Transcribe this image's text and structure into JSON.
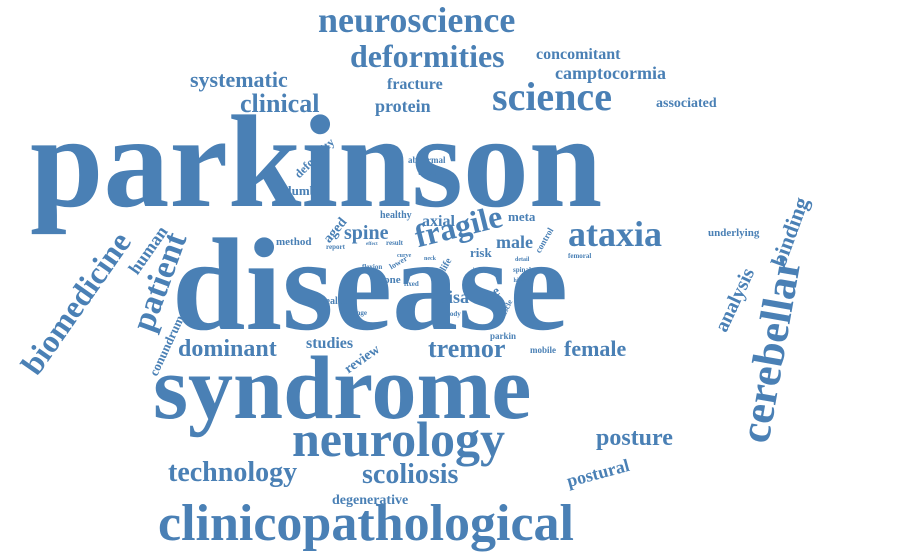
{
  "colors": {
    "word": "#4a80b5",
    "background": "#ffffff"
  },
  "words": [
    {
      "key": "parkinson",
      "text": "parkinson"
    },
    {
      "key": "disease",
      "text": "disease"
    },
    {
      "key": "syndrome",
      "text": "syndrome"
    },
    {
      "key": "neurology",
      "text": "neurology"
    },
    {
      "key": "clinicopathological",
      "text": "clinicopathological"
    },
    {
      "key": "cerebellar",
      "text": "cerebellar"
    },
    {
      "key": "neuroscience",
      "text": "neuroscience"
    },
    {
      "key": "deformities",
      "text": "deformities"
    },
    {
      "key": "science",
      "text": "science"
    },
    {
      "key": "biomedicine",
      "text": "biomedicine"
    },
    {
      "key": "patient",
      "text": "patient"
    },
    {
      "key": "ataxia",
      "text": "ataxia"
    },
    {
      "key": "fragile",
      "text": "fragile"
    },
    {
      "key": "technology",
      "text": "technology"
    },
    {
      "key": "scoliosis",
      "text": "scoliosis"
    },
    {
      "key": "posture",
      "text": "posture"
    },
    {
      "key": "systematic",
      "text": "systematic"
    },
    {
      "key": "clinical",
      "text": "clinical"
    },
    {
      "key": "camptocormia",
      "text": "camptocormia"
    },
    {
      "key": "concomitant",
      "text": "concomitant"
    },
    {
      "key": "tremor",
      "text": "tremor"
    },
    {
      "key": "dominant",
      "text": "dominant"
    },
    {
      "key": "female",
      "text": "female"
    },
    {
      "key": "analysis",
      "text": "analysis"
    },
    {
      "key": "binding",
      "text": "binding"
    },
    {
      "key": "spine",
      "text": "spine"
    },
    {
      "key": "human",
      "text": "human"
    },
    {
      "key": "protein",
      "text": "protein"
    },
    {
      "key": "fracture",
      "text": "fracture"
    },
    {
      "key": "associated",
      "text": "associated"
    },
    {
      "key": "postural",
      "text": "postural"
    },
    {
      "key": "male",
      "text": "male"
    },
    {
      "key": "axial",
      "text": "axial"
    },
    {
      "key": "pisa",
      "text": "pisa"
    },
    {
      "key": "conundrum",
      "text": "conundrum"
    },
    {
      "key": "review",
      "text": "review"
    },
    {
      "key": "studies",
      "text": "studies"
    },
    {
      "key": "degenerative",
      "text": "degenerative"
    },
    {
      "key": "lumbar",
      "text": "lumbar"
    },
    {
      "key": "deformity",
      "text": "deformity"
    },
    {
      "key": "risk",
      "text": "risk"
    },
    {
      "key": "meta",
      "text": "meta"
    },
    {
      "key": "case",
      "text": "case"
    },
    {
      "key": "aged",
      "text": "aged"
    },
    {
      "key": "method",
      "text": "method"
    },
    {
      "key": "healthy",
      "text": "healthy"
    },
    {
      "key": "underlying",
      "text": "underlying"
    },
    {
      "key": "abnormal",
      "text": "abnormal"
    },
    {
      "key": "update",
      "text": "update"
    },
    {
      "key": "bone",
      "text": "bone"
    },
    {
      "key": "control",
      "text": "control"
    },
    {
      "key": "health",
      "text": "health"
    },
    {
      "key": "mobile",
      "text": "mobile"
    },
    {
      "key": "parkin",
      "text": "parkin"
    },
    {
      "key": "report",
      "text": "report"
    },
    {
      "key": "result",
      "text": "result"
    },
    {
      "key": "flexion",
      "text": "flexion"
    },
    {
      "key": "fixed",
      "text": "fixed"
    },
    {
      "key": "change",
      "text": "change"
    },
    {
      "key": "body",
      "text": "body"
    },
    {
      "key": "femoral",
      "text": "femoral"
    },
    {
      "key": "effect",
      "text": "effect"
    },
    {
      "key": "lower",
      "text": "lower"
    },
    {
      "key": "life",
      "text": "life"
    },
    {
      "key": "curve",
      "text": "curve"
    },
    {
      "key": "neck",
      "text": "neck"
    },
    {
      "key": "detail",
      "text": "detail"
    },
    {
      "key": "spinal",
      "text": "spinal"
    },
    {
      "key": "higher",
      "text": "higher"
    },
    {
      "key": "muscle",
      "text": "muscle"
    },
    {
      "key": "level",
      "text": "level"
    }
  ]
}
